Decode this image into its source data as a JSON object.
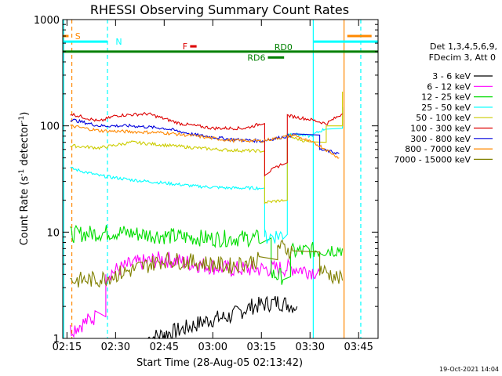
{
  "chart_data": {
    "type": "line",
    "title": "RHESSI Observing Summary Count Rates",
    "xlabel": "Start Time (28-Aug-05 02:13:42)",
    "ylabel_main": "Count Rate (s",
    "ylabel_sup1": "-1",
    "ylabel_mid": " detector",
    "ylabel_sup2": "-1",
    "ylabel_end": ")",
    "y_scale": "log",
    "ylim": [
      1,
      1000
    ],
    "xlim": [
      "02:13:42",
      "03:51:00"
    ],
    "x_ticks": [
      "02:15",
      "02:30",
      "02:45",
      "03:00",
      "03:15",
      "03:30",
      "03:45"
    ],
    "y_ticks": [
      "1",
      "10",
      "100",
      "1000"
    ],
    "legend_header": [
      "Det 1,3,4,5,6,9,",
      "FDecim 3, Att 0"
    ],
    "series": [
      {
        "name": "3 - 6 keV",
        "color": "#000000",
        "segments": [
          [
            "02:40",
            1.0
          ],
          [
            "02:50",
            1.2
          ],
          [
            "02:59",
            1.5
          ],
          [
            "03:05",
            1.6
          ],
          [
            "03:12",
            2.0
          ],
          [
            "03:20",
            2.2
          ],
          [
            "03:26",
            2.0
          ]
        ]
      },
      {
        "name": "6 - 12 keV",
        "color": "#ff00ff",
        "segments": [
          [
            "02:16",
            1.2
          ],
          [
            "02:24",
            1.6
          ],
          [
            "02:27",
            4.0
          ],
          [
            "02:35",
            5.0
          ],
          [
            "02:45",
            5.6
          ],
          [
            "02:55",
            5.0
          ],
          [
            "03:05",
            4.5
          ],
          [
            "03:15",
            4.5
          ],
          [
            "03:25",
            4.6
          ],
          [
            "03:33",
            4.2
          ]
        ]
      },
      {
        "name": "12 - 25 keV",
        "color": "#00dd00",
        "segments": [
          [
            "02:16",
            9.5
          ],
          [
            "02:30",
            10.0
          ],
          [
            "02:45",
            9.2
          ],
          [
            "03:00",
            8.7
          ],
          [
            "03:15",
            8.8
          ],
          [
            "03:18",
            4.0
          ],
          [
            "03:22",
            3.8
          ],
          [
            "03:24",
            6.5
          ],
          [
            "03:33",
            6.8
          ],
          [
            "03:40",
            7.0
          ]
        ]
      },
      {
        "name": "25 - 50 keV",
        "color": "#00ffff",
        "segments": [
          [
            "02:16",
            40
          ],
          [
            "02:25",
            34
          ],
          [
            "02:35",
            31
          ],
          [
            "02:45",
            29
          ],
          [
            "02:55",
            27
          ],
          [
            "03:05",
            26
          ],
          [
            "03:15",
            26
          ],
          [
            "03:16",
            9
          ],
          [
            "03:22",
            9.5
          ],
          [
            "03:23",
            85
          ],
          [
            "03:30",
            80
          ],
          [
            "03:35",
            95
          ],
          [
            "03:40",
            150
          ]
        ]
      },
      {
        "name": "50 - 100 keV",
        "color": "#cccc00",
        "segments": [
          [
            "02:16",
            65
          ],
          [
            "02:25",
            62
          ],
          [
            "02:35",
            70
          ],
          [
            "02:45",
            66
          ],
          [
            "02:55",
            62
          ],
          [
            "03:05",
            59
          ],
          [
            "03:15",
            58
          ],
          [
            "03:16",
            19
          ],
          [
            "03:22",
            20
          ],
          [
            "03:23",
            80
          ],
          [
            "03:30",
            70
          ],
          [
            "03:35",
            100
          ],
          [
            "03:40",
            210
          ]
        ]
      },
      {
        "name": "100 - 300 keV",
        "color": "#dd0000",
        "segments": [
          [
            "02:16",
            130
          ],
          [
            "02:25",
            110
          ],
          [
            "02:30",
            125
          ],
          [
            "02:40",
            130
          ],
          [
            "02:50",
            105
          ],
          [
            "03:00",
            95
          ],
          [
            "03:10",
            95
          ],
          [
            "03:15",
            105
          ],
          [
            "03:16",
            35
          ],
          [
            "03:22",
            45
          ],
          [
            "03:23",
            125
          ],
          [
            "03:30",
            115
          ],
          [
            "03:35",
            105
          ],
          [
            "03:40",
            130
          ]
        ]
      },
      {
        "name": "300 - 800 keV",
        "color": "#0000dd",
        "segments": [
          [
            "02:16",
            115
          ],
          [
            "02:25",
            100
          ],
          [
            "02:35",
            100
          ],
          [
            "02:45",
            95
          ],
          [
            "02:55",
            82
          ],
          [
            "03:05",
            75
          ],
          [
            "03:15",
            72
          ],
          [
            "03:25",
            82
          ],
          [
            "03:33",
            60
          ],
          [
            "03:39",
            55
          ]
        ]
      },
      {
        "name": "800 - 7000 keV",
        "color": "#ff8800",
        "segments": [
          [
            "02:16",
            100
          ],
          [
            "02:25",
            90
          ],
          [
            "02:35",
            88
          ],
          [
            "02:45",
            86
          ],
          [
            "02:55",
            80
          ],
          [
            "03:05",
            73
          ],
          [
            "03:15",
            72
          ],
          [
            "03:25",
            82
          ],
          [
            "03:33",
            65
          ],
          [
            "03:39",
            50
          ]
        ]
      },
      {
        "name": "7000 - 15000 keV",
        "color": "#808000",
        "segments": [
          [
            "02:16",
            3.5
          ],
          [
            "02:25",
            3.6
          ],
          [
            "02:35",
            4.4
          ],
          [
            "02:45",
            5.5
          ],
          [
            "02:55",
            5.2
          ],
          [
            "03:05",
            4.8
          ],
          [
            "03:15",
            5.5
          ],
          [
            "03:20",
            7.5
          ],
          [
            "03:25",
            6.5
          ],
          [
            "03:33",
            4.5
          ],
          [
            "03:40",
            3.5
          ]
        ]
      }
    ],
    "flag_bars": [
      {
        "label": "S",
        "color": "#ff8800",
        "y": 700,
        "segments": [
          [
            "02:13:42",
            "02:15:30"
          ],
          [
            "03:41:30",
            "03:49:00"
          ]
        ]
      },
      {
        "label": "N",
        "color": "#00ffff",
        "y": 620,
        "segments": [
          [
            "02:13:42",
            "02:27:30"
          ],
          [
            "03:31:00",
            "03:51:00"
          ]
        ]
      },
      {
        "label": "F",
        "color": "#dd0000",
        "y": 560,
        "segments": [
          [
            "02:53",
            "02:55"
          ]
        ]
      },
      {
        "label": "RD0",
        "color": "#008000",
        "y": 500,
        "segments": [
          [
            "02:13:42",
            "03:51:00"
          ]
        ]
      },
      {
        "label": "RD6",
        "color": "#008000",
        "y": 440,
        "segments": [
          [
            "03:17",
            "03:22"
          ]
        ]
      }
    ],
    "vertical_markers": [
      {
        "time": "02:14:00",
        "color": "#00ffff",
        "style": "solid"
      },
      {
        "time": "02:16:30",
        "color": "#ff8800",
        "style": "dashed"
      },
      {
        "time": "02:27:30",
        "color": "#00ffff",
        "style": "dashed"
      },
      {
        "time": "03:31:00",
        "color": "#00ffff",
        "style": "solid"
      },
      {
        "time": "03:40:30",
        "color": "#ff8800",
        "style": "solid"
      },
      {
        "time": "03:45:40",
        "color": "#00ffff",
        "style": "dashed"
      }
    ],
    "timestamp": "19-Oct-2021 14:04"
  }
}
